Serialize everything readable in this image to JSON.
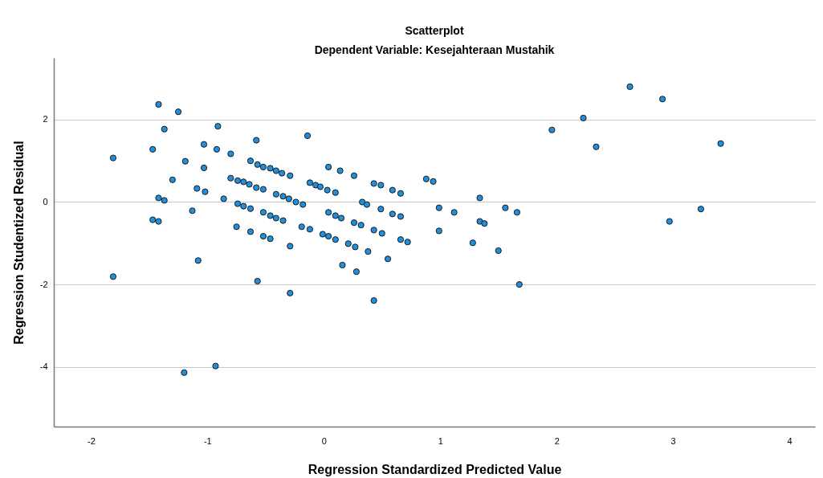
{
  "chart_data": {
    "type": "scatter",
    "title": "Scatterplot",
    "subtitle": "Dependent Variable: Kesejahteraan Mustahik",
    "xlabel": "Regression Standardized Predicted Value",
    "ylabel": "Regression Studentized Residual",
    "xlim": [
      -2.32,
      4.22
    ],
    "ylim": [
      -5.45,
      3.5
    ],
    "xticks": [
      -2,
      -1,
      0,
      1,
      2,
      3,
      4
    ],
    "yticks": [
      -4,
      -2,
      0,
      2
    ],
    "grid": "y",
    "marker": "circle",
    "series": [
      {
        "color": "#1f8fe0",
        "x": [
          -1.81,
          -1.81,
          -1.47,
          -1.47,
          -1.42,
          -1.42,
          -1.42,
          -1.37,
          -1.37,
          -1.3,
          -1.25,
          -1.2,
          -1.19,
          -1.13,
          -1.08,
          -1.09,
          -1.03,
          -1.03,
          -1.02,
          -0.93,
          -0.92,
          -0.91,
          -0.86,
          -0.8,
          -0.8,
          -0.74,
          -0.75,
          -0.74,
          -0.69,
          -0.64,
          -0.69,
          -0.63,
          -0.63,
          -0.58,
          -0.63,
          -0.57,
          -0.52,
          -0.46,
          -0.41,
          -0.36,
          -0.29,
          -0.14,
          0.04,
          0.14,
          0.26,
          0.43,
          0.49,
          0.59,
          0.66,
          0.88,
          0.94,
          -0.58,
          -0.52,
          -0.12,
          -0.07,
          -0.03,
          0.03,
          0.1,
          -0.41,
          -0.35,
          -0.3,
          -0.24,
          -0.18,
          -0.52,
          -0.46,
          -0.41,
          -0.35,
          -0.19,
          -0.12,
          0.04,
          0.1,
          0.15,
          0.33,
          0.37,
          0.49,
          0.59,
          0.66,
          0.99,
          0.99,
          -0.52,
          -0.46,
          -0.01,
          0.04,
          0.1,
          0.26,
          0.32,
          0.43,
          0.5,
          0.66,
          0.72,
          -0.29,
          0.21,
          0.27,
          0.38,
          0.55,
          1.28,
          1.5,
          0.16,
          0.28,
          -0.57,
          -0.29,
          0.43,
          1.68,
          1.34,
          1.12,
          1.34,
          1.38,
          1.56,
          1.66,
          1.96,
          2.23,
          2.34,
          2.63,
          2.91,
          3.41,
          2.97,
          3.24
        ],
        "values": [
          1.07,
          -1.81,
          1.28,
          -0.43,
          2.37,
          0.1,
          -0.47,
          1.77,
          0.04,
          0.54,
          2.19,
          -4.14,
          0.99,
          -0.21,
          -1.42,
          0.33,
          1.4,
          0.83,
          0.25,
          -3.98,
          1.28,
          1.84,
          0.08,
          1.17,
          0.58,
          0.52,
          -0.6,
          -0.04,
          0.49,
          0.43,
          -0.1,
          -0.16,
          -0.72,
          1.5,
          1.0,
          0.91,
          0.85,
          0.82,
          0.76,
          0.7,
          0.64,
          1.61,
          0.85,
          0.76,
          0.64,
          0.45,
          0.41,
          0.29,
          0.21,
          0.56,
          0.5,
          0.35,
          0.31,
          0.47,
          0.41,
          0.37,
          0.29,
          0.23,
          0.19,
          0.14,
          0.08,
          0.0,
          -0.06,
          -0.25,
          -0.33,
          -0.39,
          -0.45,
          -0.6,
          -0.66,
          -0.25,
          -0.33,
          -0.39,
          0.0,
          -0.06,
          -0.17,
          -0.29,
          -0.35,
          -0.14,
          -0.7,
          -0.83,
          -0.89,
          -0.78,
          -0.83,
          -0.91,
          -0.5,
          -0.56,
          -0.68,
          -0.76,
          -0.91,
          -0.97,
          -1.07,
          -1.01,
          -1.09,
          -1.2,
          -1.38,
          -0.99,
          -1.18,
          -1.53,
          -1.69,
          -1.92,
          -2.21,
          -2.39,
          -2.0,
          0.1,
          -0.25,
          -0.47,
          -0.52,
          -0.14,
          -0.25,
          1.75,
          2.04,
          1.34,
          2.8,
          2.5,
          1.42,
          -0.47,
          -0.17
        ]
      }
    ]
  }
}
